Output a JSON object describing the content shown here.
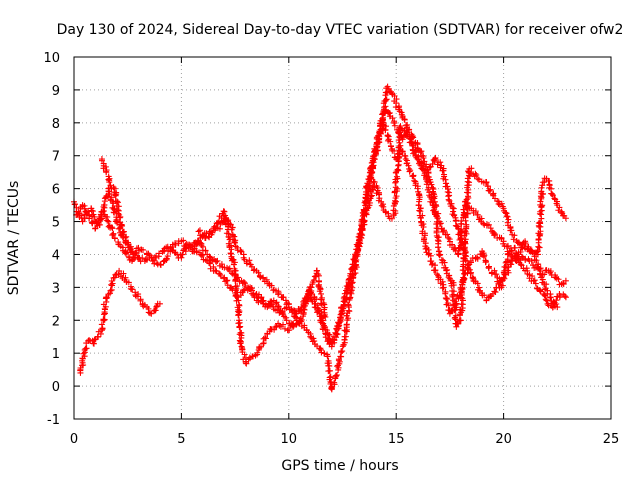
{
  "chart_data": {
    "type": "scatter",
    "title": "Day 130 of 2024, Sidereal Day-to-day VTEC variation (SDTVAR) for receiver ofw2",
    "xlabel": "GPS time / hours",
    "ylabel": "SDTVAR / TECUs",
    "xlim": [
      0,
      25
    ],
    "ylim": [
      -1,
      10
    ],
    "grid": true,
    "marker": "plus",
    "xticks": [
      "0",
      "5",
      "10",
      "15",
      "20",
      "25"
    ],
    "yticks": [
      "-1",
      "0",
      "1",
      "2",
      "3",
      "4",
      "5",
      "6",
      "7",
      "8",
      "9",
      "10"
    ],
    "colors": {
      "series": "#ff0000",
      "grid": "#a0a0a0",
      "axes": "#000000"
    },
    "series": [
      {
        "name": "SDTVAR",
        "description": "sampled trace points (x in hours, y in TECU)",
        "x": [
          0.0,
          0.2,
          0.4,
          0.6,
          0.8,
          1.0,
          1.2,
          1.4,
          1.6,
          1.8,
          2.0,
          2.2,
          2.4,
          2.6,
          2.8,
          3.0,
          3.3,
          3.6,
          3.9,
          4.2,
          4.5,
          4.8,
          5.0,
          5.3,
          5.6,
          5.9,
          6.2,
          6.5,
          6.8,
          7.0,
          7.3,
          7.6,
          7.9,
          8.2,
          8.5,
          8.8,
          9.1,
          9.4,
          9.7,
          10.0,
          10.3,
          10.6,
          10.9,
          11.2,
          11.5,
          11.7,
          11.9,
          12.1,
          12.4,
          12.7,
          13.0,
          13.3,
          13.6,
          13.9,
          14.1,
          14.3,
          14.5,
          14.7,
          14.9,
          15.1,
          15.3,
          15.5,
          15.7,
          15.9,
          16.1,
          16.4,
          16.7,
          17.0,
          17.3,
          17.6,
          17.9,
          18.2,
          18.5,
          18.8,
          19.1,
          19.4,
          19.7,
          20.0,
          20.3,
          20.6,
          20.9,
          21.2,
          21.5,
          21.8,
          22.1,
          22.4,
          22.7,
          22.9
        ],
        "y": [
          5.6,
          5.3,
          5.0,
          5.2,
          5.4,
          5.0,
          4.9,
          5.5,
          6.0,
          5.6,
          5.0,
          4.6,
          4.4,
          4.2,
          4.0,
          3.9,
          3.8,
          3.9,
          3.7,
          3.8,
          4.2,
          4.0,
          3.9,
          4.3,
          4.1,
          4.0,
          3.8,
          3.5,
          3.4,
          3.3,
          3.0,
          2.7,
          2.9,
          3.0,
          2.8,
          2.6,
          2.5,
          2.3,
          2.2,
          2.4,
          2.1,
          2.3,
          2.8,
          2.5,
          2.0,
          1.6,
          1.3,
          1.5,
          2.0,
          2.8,
          3.7,
          4.5,
          5.6,
          6.8,
          7.4,
          7.9,
          8.5,
          8.3,
          8.0,
          7.7,
          7.5,
          7.7,
          7.4,
          7.0,
          6.8,
          6.3,
          5.5,
          5.0,
          4.6,
          4.3,
          4.0,
          5.6,
          5.4,
          5.2,
          4.9,
          4.8,
          4.5,
          4.4,
          4.0,
          3.8,
          3.9,
          3.8,
          3.6,
          3.4,
          3.5,
          3.3,
          3.1,
          3.2
        ]
      },
      {
        "name": "SDTVAR",
        "description": "sampled trace points (x in hours, y in TECU)",
        "x": [
          0.1,
          0.4,
          0.7,
          1.0,
          1.3,
          1.6,
          1.9,
          2.1,
          2.4,
          2.7,
          3.0,
          3.4,
          3.8,
          4.2,
          4.6,
          5.0,
          5.4,
          5.8,
          6.2,
          6.6,
          7.0,
          7.4,
          7.8,
          8.1,
          8.4,
          8.7,
          9.0,
          9.3,
          9.6,
          9.9,
          10.2,
          10.5,
          10.8,
          11.0,
          11.2,
          11.4,
          11.6,
          11.8,
          12.0,
          12.2,
          12.5,
          12.8,
          13.1,
          13.4,
          13.7,
          14.0,
          14.2,
          14.4,
          14.6,
          14.8,
          15.0,
          15.2,
          15.4,
          15.6,
          15.8,
          16.0,
          16.3,
          16.6,
          16.9,
          17.2,
          17.5,
          17.8,
          18.1,
          18.4,
          18.7,
          19.0,
          19.3,
          19.6,
          19.9,
          20.2,
          20.5,
          20.8,
          21.1,
          21.4,
          21.7,
          22.0,
          22.3,
          22.6,
          22.9
        ],
        "y": [
          5.2,
          5.5,
          5.1,
          4.8,
          5.3,
          5.0,
          4.5,
          4.3,
          4.1,
          3.8,
          4.2,
          4.0,
          3.9,
          4.1,
          4.3,
          4.4,
          4.2,
          4.4,
          4.0,
          3.8,
          3.6,
          3.4,
          3.2,
          3.0,
          2.7,
          2.6,
          2.4,
          2.6,
          2.3,
          2.0,
          1.8,
          1.9,
          2.5,
          3.0,
          2.7,
          2.3,
          1.9,
          1.6,
          1.2,
          1.6,
          2.4,
          3.1,
          3.9,
          4.8,
          6.1,
          6.9,
          7.5,
          8.0,
          7.6,
          7.2,
          6.9,
          7.2,
          7.0,
          6.6,
          6.4,
          6.0,
          4.5,
          3.8,
          3.4,
          3.0,
          2.2,
          2.5,
          3.2,
          3.7,
          3.9,
          4.1,
          3.6,
          3.4,
          3.0,
          4.0,
          4.2,
          3.7,
          3.5,
          3.2,
          2.9,
          2.6,
          2.4,
          2.8,
          2.7
        ]
      },
      {
        "name": "SDTVAR",
        "description": "sampled trace points (x in hours, y in TECU)",
        "x": [
          0.3,
          0.5,
          0.7,
          0.9,
          1.1,
          1.3,
          1.5,
          1.7,
          1.9,
          2.1,
          3.2,
          3.4,
          3.6,
          3.8,
          4.0,
          5.5,
          6.0,
          6.5,
          7.0,
          7.5,
          7.8,
          8.0,
          8.3,
          8.6,
          9.0,
          9.5,
          10.0,
          10.5,
          11.0,
          11.5,
          11.8,
          12.0,
          12.2,
          12.4,
          12.6,
          12.8,
          13.0,
          13.2,
          13.5,
          13.8,
          14.0,
          14.3,
          14.5,
          14.7,
          14.9,
          15.2,
          15.5,
          15.8,
          16.0,
          16.3,
          16.6,
          16.8,
          17.0,
          17.3,
          17.6,
          17.8,
          18.0,
          18.4,
          18.8,
          19.2,
          19.6,
          20.0,
          20.4,
          20.8,
          21.2,
          21.6,
          21.8,
          22.0,
          22.3,
          22.5,
          22.7,
          22.9
        ],
        "y": [
          0.4,
          1.1,
          1.4,
          1.3,
          1.5,
          1.7,
          2.7,
          2.9,
          3.3,
          3.5,
          2.5,
          2.4,
          2.2,
          2.3,
          2.5,
          4.1,
          4.6,
          4.8,
          5.3,
          3.5,
          1.2,
          0.7,
          0.9,
          1.1,
          1.6,
          1.9,
          1.7,
          2.0,
          1.5,
          1.1,
          0.9,
          -0.1,
          0.3,
          0.9,
          1.5,
          2.4,
          3.3,
          4.0,
          5.0,
          5.7,
          6.2,
          5.6,
          5.3,
          5.1,
          5.2,
          7.9,
          7.7,
          7.3,
          6.9,
          6.6,
          6.2,
          5.6,
          4.1,
          3.6,
          3.2,
          1.8,
          2.0,
          6.6,
          6.3,
          6.2,
          5.7,
          5.4,
          4.6,
          4.3,
          4.1,
          4.0,
          6.1,
          6.3,
          5.8,
          5.5,
          5.3,
          5.1
        ]
      },
      {
        "name": "SDTVAR",
        "description": "sampled trace points (x in hours, y in TECU)",
        "x": [
          1.3,
          1.5,
          1.7,
          1.9,
          2.1,
          2.3,
          2.5,
          2.7,
          5.8,
          6.1,
          6.4,
          6.7,
          7.0,
          7.3,
          7.6,
          7.9,
          8.2,
          8.5,
          8.8,
          9.1,
          9.4,
          9.7,
          10.0,
          10.3,
          10.6,
          10.9,
          11.1,
          11.3,
          11.5,
          11.7,
          13.6,
          13.8,
          14.0,
          14.2,
          14.4,
          14.6,
          14.8,
          15.0,
          15.3,
          15.6,
          15.9,
          16.2,
          16.5,
          16.8,
          17.1,
          17.4,
          17.7,
          18.0,
          18.3,
          18.6,
          18.9,
          19.2,
          19.5,
          19.8,
          20.1,
          20.4,
          20.7,
          21.0,
          21.3,
          21.6,
          21.9,
          22.2,
          22.5
        ],
        "y": [
          6.9,
          6.5,
          6.1,
          6.0,
          5.2,
          4.6,
          4.3,
          4.1,
          4.7,
          4.5,
          4.6,
          4.8,
          5.1,
          4.9,
          4.2,
          4.0,
          3.7,
          3.5,
          3.3,
          3.1,
          2.9,
          2.7,
          2.5,
          2.2,
          2.4,
          2.7,
          3.1,
          3.5,
          2.8,
          2.1,
          5.9,
          6.5,
          7.0,
          7.6,
          8.3,
          9.1,
          8.9,
          8.6,
          8.2,
          7.8,
          7.4,
          7.0,
          6.5,
          6.9,
          6.7,
          5.9,
          5.2,
          4.5,
          3.8,
          3.2,
          2.9,
          2.6,
          2.8,
          3.1,
          3.4,
          3.8,
          4.0,
          4.4,
          4.1,
          3.7,
          3.1,
          2.7,
          2.4
        ]
      }
    ]
  }
}
